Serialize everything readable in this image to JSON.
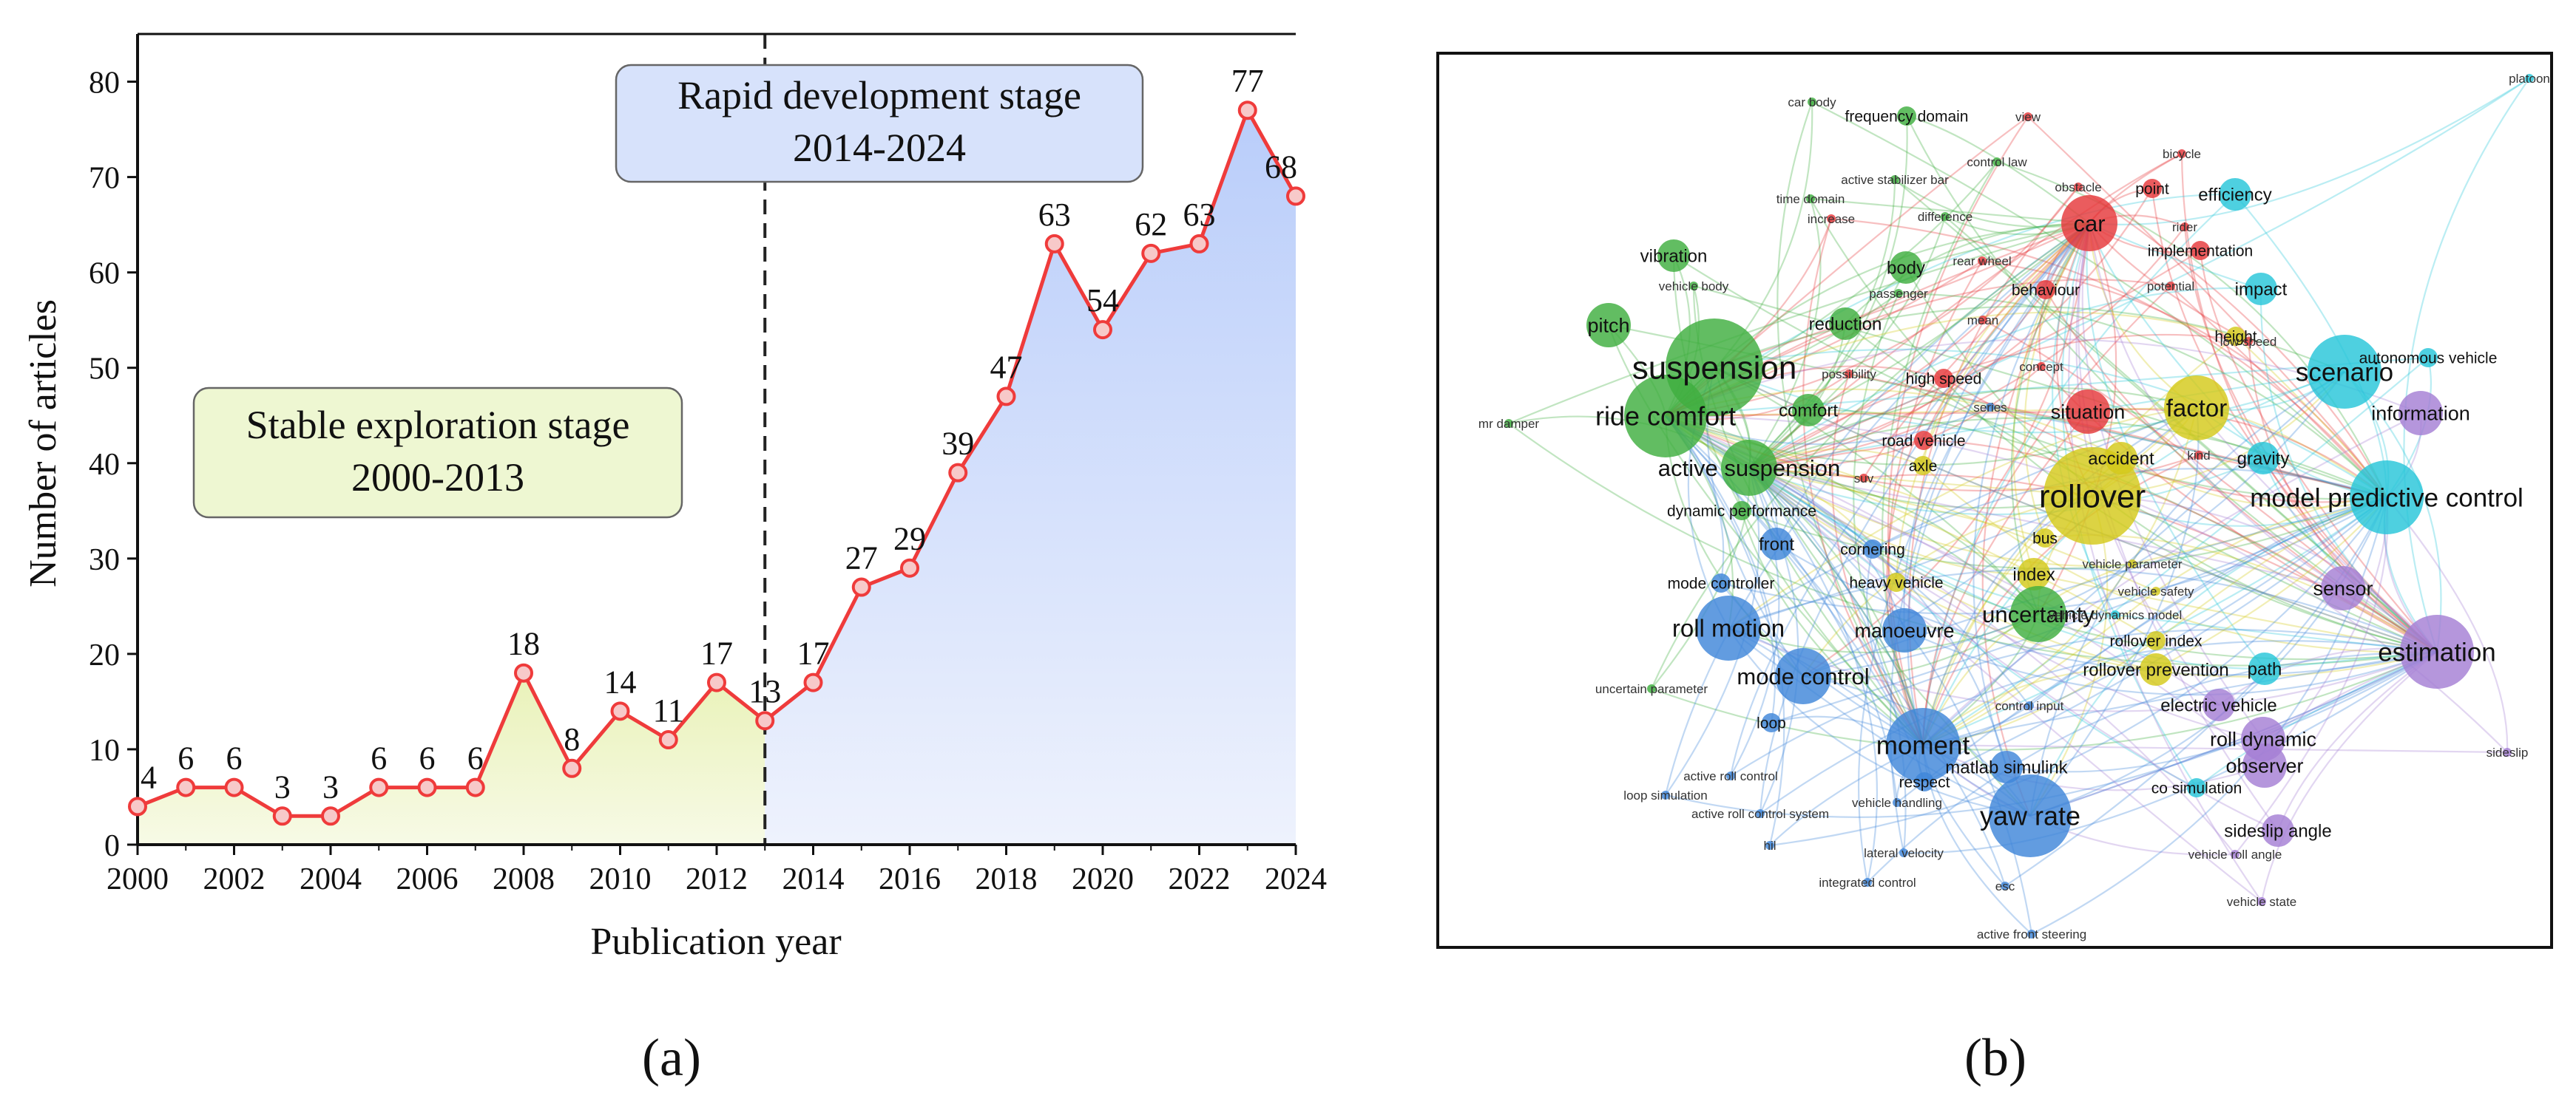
{
  "panel_labels": {
    "a": "(a)",
    "b": "(b)"
  },
  "chart_data": [
    {
      "type": "line",
      "panel": "a",
      "title": "",
      "xlabel": "Publication year",
      "ylabel": "Number of articles",
      "xlim": [
        2000,
        2024
      ],
      "ylim": [
        0,
        85
      ],
      "x_ticks": [
        2000,
        2002,
        2004,
        2006,
        2008,
        2010,
        2012,
        2014,
        2016,
        2018,
        2020,
        2022,
        2024
      ],
      "y_ticks": [
        0,
        10,
        20,
        30,
        40,
        50,
        60,
        70,
        80
      ],
      "x": [
        2000,
        2001,
        2002,
        2003,
        2004,
        2005,
        2006,
        2007,
        2008,
        2009,
        2010,
        2011,
        2012,
        2013,
        2014,
        2015,
        2016,
        2017,
        2018,
        2019,
        2020,
        2021,
        2022,
        2023,
        2024
      ],
      "series": [
        {
          "name": "Number of articles",
          "values": [
            4,
            6,
            6,
            3,
            3,
            6,
            6,
            6,
            18,
            8,
            14,
            11,
            17,
            13,
            17,
            27,
            29,
            39,
            47,
            63,
            54,
            62,
            63,
            77,
            68
          ]
        }
      ],
      "data_labels": [
        "4",
        "6",
        "6",
        "3",
        "3",
        "6",
        "6",
        "6",
        "18",
        "8",
        "14",
        "11",
        "17",
        "13",
        "17",
        "27",
        "29",
        "39",
        "47",
        "63",
        "54",
        "62",
        "63",
        "77",
        "68"
      ],
      "divider_year": 2013,
      "line_color": "#ef3b3b",
      "stage1_fill": "#eef5c4",
      "stage2_fill": "#c6d6fb",
      "annotations": [
        {
          "id": "stage1",
          "line1": "Stable exploration stage",
          "line2": "2000-2013",
          "fill": "#eef7d2"
        },
        {
          "id": "stage2",
          "line1": "Rapid development stage",
          "line2": "2014-2024",
          "fill": "#d7e2fb"
        }
      ]
    },
    {
      "type": "network",
      "panel": "b",
      "title": "",
      "cluster_colors": {
        "red": "#e5383b",
        "green": "#3fae3f",
        "blue": "#3f86d9",
        "yellow": "#d4c91a",
        "purple": "#a57fd4",
        "cyan": "#27c6d9"
      },
      "nodes": [
        {
          "label": "platoon",
          "cluster": "cyan",
          "weight": 1
        },
        {
          "label": "car body",
          "cluster": "green",
          "weight": 1
        },
        {
          "label": "frequency domain",
          "cluster": "green",
          "weight": 2
        },
        {
          "label": "view",
          "cluster": "red",
          "weight": 1
        },
        {
          "label": "bicycle",
          "cluster": "red",
          "weight": 1
        },
        {
          "label": "control law",
          "cluster": "green",
          "weight": 1
        },
        {
          "label": "active stabilizer bar",
          "cluster": "green",
          "weight": 1
        },
        {
          "label": "obstacle",
          "cluster": "red",
          "weight": 1
        },
        {
          "label": "point",
          "cluster": "red",
          "weight": 2
        },
        {
          "label": "efficiency",
          "cluster": "cyan",
          "weight": 3
        },
        {
          "label": "time domain",
          "cluster": "green",
          "weight": 1
        },
        {
          "label": "increase",
          "cluster": "red",
          "weight": 1
        },
        {
          "label": "difference",
          "cluster": "green",
          "weight": 1
        },
        {
          "label": "car",
          "cluster": "red",
          "weight": 5
        },
        {
          "label": "rider",
          "cluster": "red",
          "weight": 1
        },
        {
          "label": "vibration",
          "cluster": "green",
          "weight": 3
        },
        {
          "label": "body",
          "cluster": "green",
          "weight": 3
        },
        {
          "label": "rear wheel",
          "cluster": "red",
          "weight": 1
        },
        {
          "label": "implementation",
          "cluster": "red",
          "weight": 2
        },
        {
          "label": "vehicle body",
          "cluster": "green",
          "weight": 1
        },
        {
          "label": "behaviour",
          "cluster": "red",
          "weight": 2
        },
        {
          "label": "potential",
          "cluster": "red",
          "weight": 1
        },
        {
          "label": "impact",
          "cluster": "cyan",
          "weight": 3
        },
        {
          "label": "passenger",
          "cluster": "green",
          "weight": 1
        },
        {
          "label": "mean",
          "cluster": "red",
          "weight": 1
        },
        {
          "label": "pitch",
          "cluster": "green",
          "weight": 4
        },
        {
          "label": "reduction",
          "cluster": "green",
          "weight": 3
        },
        {
          "label": "height",
          "cluster": "yellow",
          "weight": 2
        },
        {
          "label": "low speed",
          "cluster": "red",
          "weight": 1
        },
        {
          "label": "autonomous vehicle",
          "cluster": "cyan",
          "weight": 2
        },
        {
          "label": "suspension",
          "cluster": "green",
          "weight": 10
        },
        {
          "label": "possibility",
          "cluster": "red",
          "weight": 1
        },
        {
          "label": "concept",
          "cluster": "red",
          "weight": 1
        },
        {
          "label": "high speed",
          "cluster": "red",
          "weight": 2
        },
        {
          "label": "scenario",
          "cluster": "cyan",
          "weight": 7
        },
        {
          "label": "ride comfort",
          "cluster": "green",
          "weight": 8
        },
        {
          "label": "comfort",
          "cluster": "green",
          "weight": 3
        },
        {
          "label": "series",
          "cluster": "blue",
          "weight": 1
        },
        {
          "label": "factor",
          "cluster": "yellow",
          "weight": 6
        },
        {
          "label": "information",
          "cluster": "purple",
          "weight": 4
        },
        {
          "label": "mr damper",
          "cluster": "green",
          "weight": 1
        },
        {
          "label": "situation",
          "cluster": "red",
          "weight": 4
        },
        {
          "label": "road vehicle",
          "cluster": "red",
          "weight": 2
        },
        {
          "label": "kind",
          "cluster": "red",
          "weight": 1
        },
        {
          "label": "gravity",
          "cluster": "cyan",
          "weight": 3
        },
        {
          "label": "accident",
          "cluster": "yellow",
          "weight": 3
        },
        {
          "label": "axle",
          "cluster": "yellow",
          "weight": 2
        },
        {
          "label": "active suspension",
          "cluster": "green",
          "weight": 5
        },
        {
          "label": "suv",
          "cluster": "red",
          "weight": 1
        },
        {
          "label": "rollover",
          "cluster": "yellow",
          "weight": 10
        },
        {
          "label": "model predictive control",
          "cluster": "cyan",
          "weight": 7
        },
        {
          "label": "dynamic performance",
          "cluster": "green",
          "weight": 2
        },
        {
          "label": "front",
          "cluster": "blue",
          "weight": 3
        },
        {
          "label": "cornering",
          "cluster": "blue",
          "weight": 2
        },
        {
          "label": "bus",
          "cluster": "yellow",
          "weight": 2
        },
        {
          "label": "vehicle parameter",
          "cluster": "yellow",
          "weight": 1
        },
        {
          "label": "index",
          "cluster": "yellow",
          "weight": 3
        },
        {
          "label": "mode controller",
          "cluster": "blue",
          "weight": 2
        },
        {
          "label": "heavy vehicle",
          "cluster": "yellow",
          "weight": 2
        },
        {
          "label": "vehicle safety",
          "cluster": "yellow",
          "weight": 1
        },
        {
          "label": "sensor",
          "cluster": "purple",
          "weight": 4
        },
        {
          "label": "uncertainty",
          "cluster": "green",
          "weight": 5
        },
        {
          "label": "vehicle dynamics model",
          "cluster": "cyan",
          "weight": 1
        },
        {
          "label": "roll motion",
          "cluster": "blue",
          "weight": 6
        },
        {
          "label": "manoeuvre",
          "cluster": "blue",
          "weight": 4
        },
        {
          "label": "rollover index",
          "cluster": "yellow",
          "weight": 2
        },
        {
          "label": "estimation",
          "cluster": "purple",
          "weight": 7
        },
        {
          "label": "rollover prevention",
          "cluster": "yellow",
          "weight": 3
        },
        {
          "label": "path",
          "cluster": "cyan",
          "weight": 3
        },
        {
          "label": "mode control",
          "cluster": "blue",
          "weight": 5
        },
        {
          "label": "uncertain parameter",
          "cluster": "green",
          "weight": 1
        },
        {
          "label": "control input",
          "cluster": "blue",
          "weight": 1
        },
        {
          "label": "electric vehicle",
          "cluster": "purple",
          "weight": 3
        },
        {
          "label": "loop",
          "cluster": "blue",
          "weight": 2
        },
        {
          "label": "roll dynamic",
          "cluster": "purple",
          "weight": 4
        },
        {
          "label": "moment",
          "cluster": "blue",
          "weight": 7
        },
        {
          "label": "matlab simulink",
          "cluster": "blue",
          "weight": 3
        },
        {
          "label": "observer",
          "cluster": "purple",
          "weight": 4
        },
        {
          "label": "active roll control",
          "cluster": "blue",
          "weight": 1
        },
        {
          "label": "respect",
          "cluster": "blue",
          "weight": 2
        },
        {
          "label": "co simulation",
          "cluster": "cyan",
          "weight": 2
        },
        {
          "label": "sideslip",
          "cluster": "purple",
          "weight": 1
        },
        {
          "label": "loop simulation",
          "cluster": "blue",
          "weight": 1
        },
        {
          "label": "vehicle handling",
          "cluster": "blue",
          "weight": 1
        },
        {
          "label": "active roll control system",
          "cluster": "blue",
          "weight": 1
        },
        {
          "label": "yaw rate",
          "cluster": "blue",
          "weight": 8
        },
        {
          "label": "sideslip angle",
          "cluster": "purple",
          "weight": 3
        },
        {
          "label": "hil",
          "cluster": "blue",
          "weight": 1
        },
        {
          "label": "lateral velocity",
          "cluster": "blue",
          "weight": 1
        },
        {
          "label": "vehicle roll angle",
          "cluster": "purple",
          "weight": 1
        },
        {
          "label": "integrated control",
          "cluster": "blue",
          "weight": 1
        },
        {
          "label": "esc",
          "cluster": "blue",
          "weight": 1
        },
        {
          "label": "vehicle state",
          "cluster": "purple",
          "weight": 1
        },
        {
          "label": "active front steering",
          "cluster": "blue",
          "weight": 1
        }
      ]
    }
  ]
}
